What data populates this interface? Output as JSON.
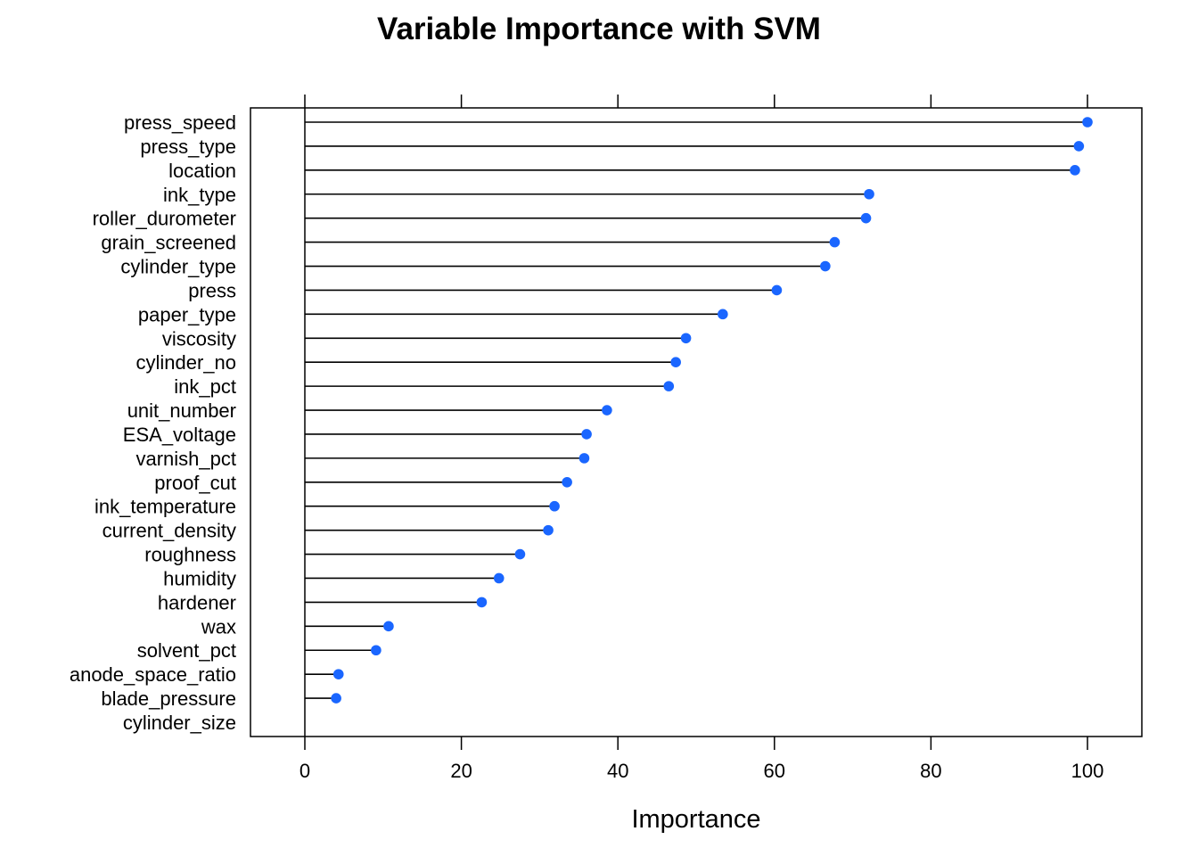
{
  "chart_data": {
    "type": "dotplot",
    "title": "Variable Importance with SVM",
    "xlabel": "Importance",
    "ylabel": "",
    "xlim": [
      -7,
      107
    ],
    "xticks": [
      0,
      20,
      40,
      60,
      80,
      100
    ],
    "grid": false,
    "legend": "none",
    "colors": {
      "point": "#1a66ff",
      "line": "#000000"
    },
    "categories": [
      "press_speed",
      "press_type",
      "location",
      "ink_type",
      "roller_durometer",
      "grain_screened",
      "cylinder_type",
      "press",
      "paper_type",
      "viscosity",
      "cylinder_no",
      "ink_pct",
      "unit_number",
      "ESA_voltage",
      "varnish_pct",
      "proof_cut",
      "ink_temperature",
      "current_density",
      "roughness",
      "humidity",
      "hardener",
      "wax",
      "solvent_pct",
      "anode_space_ratio",
      "blade_pressure",
      "cylinder_size"
    ],
    "values": [
      100,
      98.9,
      98.4,
      72.1,
      71.7,
      67.7,
      66.5,
      60.3,
      53.4,
      48.7,
      47.4,
      46.5,
      38.6,
      36.0,
      35.7,
      33.5,
      31.9,
      31.1,
      27.5,
      24.8,
      22.6,
      10.7,
      9.1,
      4.3,
      4.0,
      0
    ]
  }
}
